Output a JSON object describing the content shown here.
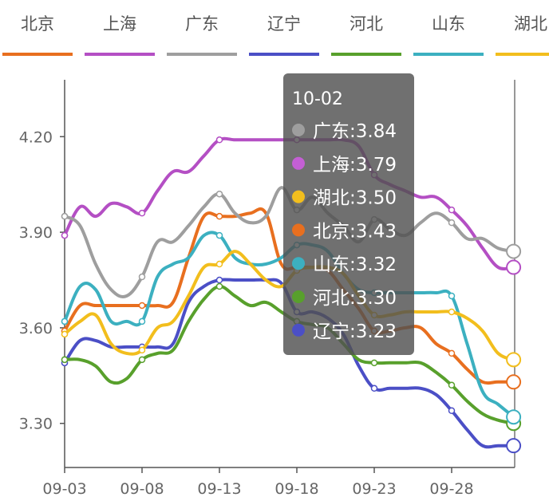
{
  "chart_data": {
    "type": "line",
    "title": "",
    "xlabel": "",
    "ylabel": "",
    "ylim": [
      3.1,
      4.35
    ],
    "yticks": [
      "3.30",
      "3.60",
      "3.90",
      "4.20"
    ],
    "xtick_labels": [
      "09-03",
      "09-08",
      "09-13",
      "09-18",
      "09-23",
      "09-28"
    ],
    "x": [
      "09-03",
      "09-04",
      "09-05",
      "09-06",
      "09-07",
      "09-08",
      "09-09",
      "09-10",
      "09-11",
      "09-12",
      "09-13",
      "09-14",
      "09-15",
      "09-16",
      "09-17",
      "09-18",
      "09-19",
      "09-20",
      "09-21",
      "09-22",
      "09-23",
      "09-24",
      "09-25",
      "09-26",
      "09-27",
      "09-28",
      "09-29",
      "09-30",
      "10-01",
      "10-02"
    ],
    "legend_position": "top",
    "series": [
      {
        "name": "北京",
        "color": "#e86f1f",
        "values": [
          3.59,
          3.67,
          3.67,
          3.67,
          3.67,
          3.67,
          3.67,
          3.68,
          3.82,
          3.95,
          3.95,
          3.95,
          3.96,
          3.96,
          3.8,
          3.79,
          3.79,
          3.78,
          3.72,
          3.66,
          3.59,
          3.59,
          3.6,
          3.6,
          3.55,
          3.52,
          3.47,
          3.43,
          3.43,
          3.43
        ]
      },
      {
        "name": "上海",
        "color": "#b44fc4",
        "values": [
          3.89,
          3.98,
          3.95,
          3.99,
          3.98,
          3.96,
          4.03,
          4.09,
          4.09,
          4.14,
          4.19,
          4.19,
          4.19,
          4.19,
          4.19,
          4.19,
          4.19,
          4.19,
          4.19,
          4.17,
          4.08,
          4.05,
          4.03,
          4.01,
          4.01,
          3.97,
          3.92,
          3.85,
          3.79,
          3.79
        ]
      },
      {
        "name": "广东",
        "color": "#9e9e9e",
        "values": [
          3.95,
          3.92,
          3.8,
          3.72,
          3.7,
          3.76,
          3.87,
          3.87,
          3.92,
          3.98,
          4.02,
          3.96,
          3.93,
          3.95,
          4.04,
          3.97,
          4.01,
          3.96,
          3.92,
          3.87,
          3.94,
          3.91,
          3.89,
          3.93,
          3.96,
          3.93,
          3.88,
          3.88,
          3.85,
          3.84
        ]
      },
      {
        "name": "辽宁",
        "color": "#4b4fc6",
        "values": [
          3.49,
          3.56,
          3.56,
          3.54,
          3.54,
          3.54,
          3.54,
          3.55,
          3.68,
          3.73,
          3.75,
          3.75,
          3.75,
          3.75,
          3.74,
          3.65,
          3.65,
          3.63,
          3.58,
          3.48,
          3.41,
          3.41,
          3.41,
          3.41,
          3.39,
          3.34,
          3.28,
          3.23,
          3.23,
          3.23
        ]
      },
      {
        "name": "河北",
        "color": "#58a02c",
        "values": [
          3.5,
          3.5,
          3.48,
          3.43,
          3.44,
          3.5,
          3.52,
          3.53,
          3.62,
          3.69,
          3.73,
          3.7,
          3.67,
          3.68,
          3.65,
          3.62,
          3.61,
          3.6,
          3.55,
          3.5,
          3.49,
          3.49,
          3.49,
          3.49,
          3.46,
          3.42,
          3.37,
          3.33,
          3.31,
          3.3
        ]
      },
      {
        "name": "山东",
        "color": "#3cb0c0",
        "values": [
          3.62,
          3.73,
          3.72,
          3.62,
          3.62,
          3.62,
          3.76,
          3.8,
          3.82,
          3.89,
          3.89,
          3.82,
          3.8,
          3.8,
          3.82,
          3.86,
          3.86,
          3.84,
          3.77,
          3.72,
          3.71,
          3.71,
          3.71,
          3.71,
          3.71,
          3.7,
          3.55,
          3.4,
          3.36,
          3.32
        ]
      },
      {
        "name": "湖北",
        "color": "#f2be1d",
        "values": [
          3.58,
          3.62,
          3.64,
          3.55,
          3.52,
          3.53,
          3.6,
          3.62,
          3.7,
          3.79,
          3.8,
          3.84,
          3.8,
          3.75,
          3.73,
          3.78,
          3.79,
          3.79,
          3.77,
          3.7,
          3.64,
          3.64,
          3.65,
          3.65,
          3.65,
          3.65,
          3.63,
          3.59,
          3.52,
          3.5
        ]
      }
    ],
    "tooltip": {
      "title": "10-02",
      "items": [
        {
          "label": "广东:3.84",
          "color": "#9e9e9e"
        },
        {
          "label": "上海:3.79",
          "color": "#c45fd4"
        },
        {
          "label": "湖北:3.50",
          "color": "#f2be1d"
        },
        {
          "label": "北京:3.43",
          "color": "#e86f1f"
        },
        {
          "label": "山东:3.32",
          "color": "#3cb0c0"
        },
        {
          "label": "河北:3.30",
          "color": "#58a02c"
        },
        {
          "label": "辽宁:3.23",
          "color": "#4b4fc6"
        }
      ]
    }
  }
}
